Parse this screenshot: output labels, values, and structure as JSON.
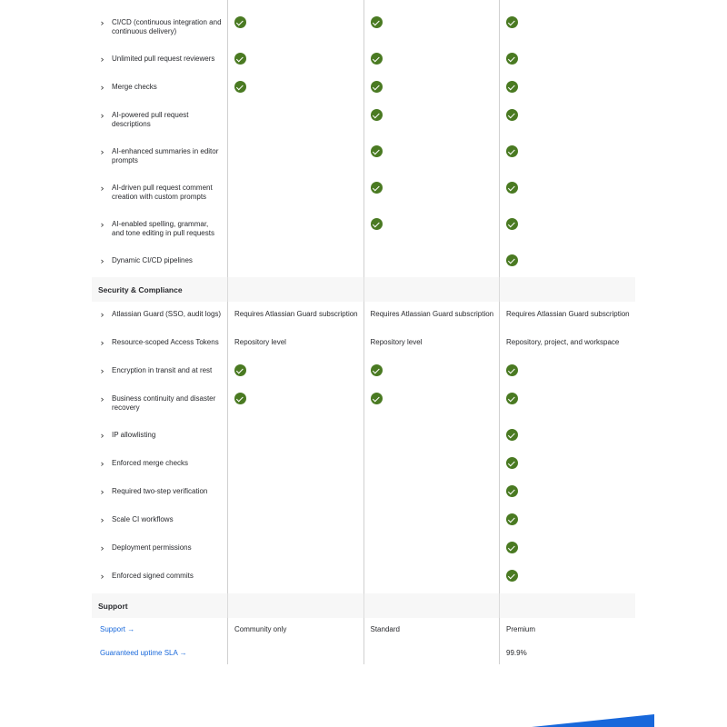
{
  "colors": {
    "check": "#4a7a22",
    "link": "#1868db",
    "section_bg": "#f7f7f7",
    "banner": "#1868db"
  },
  "rows": [
    {
      "type": "row",
      "h": 40,
      "label": "",
      "chev": false,
      "values": [
        "check",
        "check",
        "check"
      ]
    },
    {
      "type": "row",
      "h": 40,
      "label": "CI/CD (continuous integration and continuous delivery)",
      "values": [
        "check",
        "check",
        "check"
      ]
    },
    {
      "type": "row",
      "h": 31,
      "label": "Unlimited pull request reviewers",
      "values": [
        "check",
        "check",
        "check"
      ]
    },
    {
      "type": "row",
      "h": 31,
      "label": "Merge checks",
      "values": [
        "check",
        "check",
        "check"
      ]
    },
    {
      "type": "row",
      "h": 40,
      "label": "AI-powered pull request descriptions",
      "values": [
        "",
        "check",
        "check"
      ]
    },
    {
      "type": "row",
      "h": 40,
      "label": "AI-enhanced summaries in editor prompts",
      "values": [
        "",
        "check",
        "check"
      ]
    },
    {
      "type": "row",
      "h": 40,
      "label": "AI-driven pull request comment creation with custom prompts",
      "values": [
        "",
        "check",
        "check"
      ]
    },
    {
      "type": "row",
      "h": 40,
      "label": "AI-enabled spelling, grammar, and tone editing in pull requests",
      "values": [
        "",
        "check",
        "check"
      ]
    },
    {
      "type": "row",
      "h": 26,
      "label": "Dynamic CI/CD pipelines",
      "values": [
        "",
        "",
        "check"
      ]
    },
    {
      "type": "section",
      "h": 27,
      "label": "Security & Compliance"
    },
    {
      "type": "row",
      "h": 37,
      "pt": 9,
      "label": "Atlassian Guard (SSO, audit logs)",
      "values": [
        "Requires Atlassian Guard subscription",
        "Requires Atlassian Guard subscription",
        "Requires Atlassian Guard subscription"
      ]
    },
    {
      "type": "row",
      "h": 31,
      "label": "Resource-scoped Access Tokens",
      "values": [
        "Repository level",
        "Repository level",
        "Repository, project, and workspace"
      ]
    },
    {
      "type": "row",
      "h": 31,
      "label": "Encryption in transit and at rest",
      "values": [
        "check",
        "check",
        "check"
      ]
    },
    {
      "type": "row",
      "h": 40,
      "label": "Business continuity and disaster recovery",
      "values": [
        "check",
        "check",
        "check"
      ]
    },
    {
      "type": "row",
      "h": 31,
      "label": "IP allowlisting",
      "values": [
        "",
        "",
        "check"
      ]
    },
    {
      "type": "row",
      "h": 31,
      "label": "Enforced merge checks",
      "values": [
        "",
        "",
        "check"
      ]
    },
    {
      "type": "row",
      "h": 31,
      "label": "Required two-step verification",
      "values": [
        "",
        "",
        "check"
      ]
    },
    {
      "type": "row",
      "h": 31,
      "label": "Scale CI workflows",
      "values": [
        "",
        "",
        "check"
      ]
    },
    {
      "type": "row",
      "h": 31,
      "label": "Deployment permissions",
      "values": [
        "",
        "",
        "check"
      ]
    },
    {
      "type": "row",
      "h": 27,
      "label": "Enforced signed commits",
      "values": [
        "",
        "",
        "check"
      ]
    },
    {
      "type": "section",
      "h": 27,
      "label": "Support"
    },
    {
      "type": "link",
      "h": 31,
      "pt": 8,
      "label": "Support →",
      "values": [
        "Community only",
        "Standard",
        "Premium"
      ]
    },
    {
      "type": "link",
      "h": 20,
      "label": "Guaranteed uptime SLA →",
      "values": [
        "",
        "",
        "99.9%"
      ]
    }
  ]
}
